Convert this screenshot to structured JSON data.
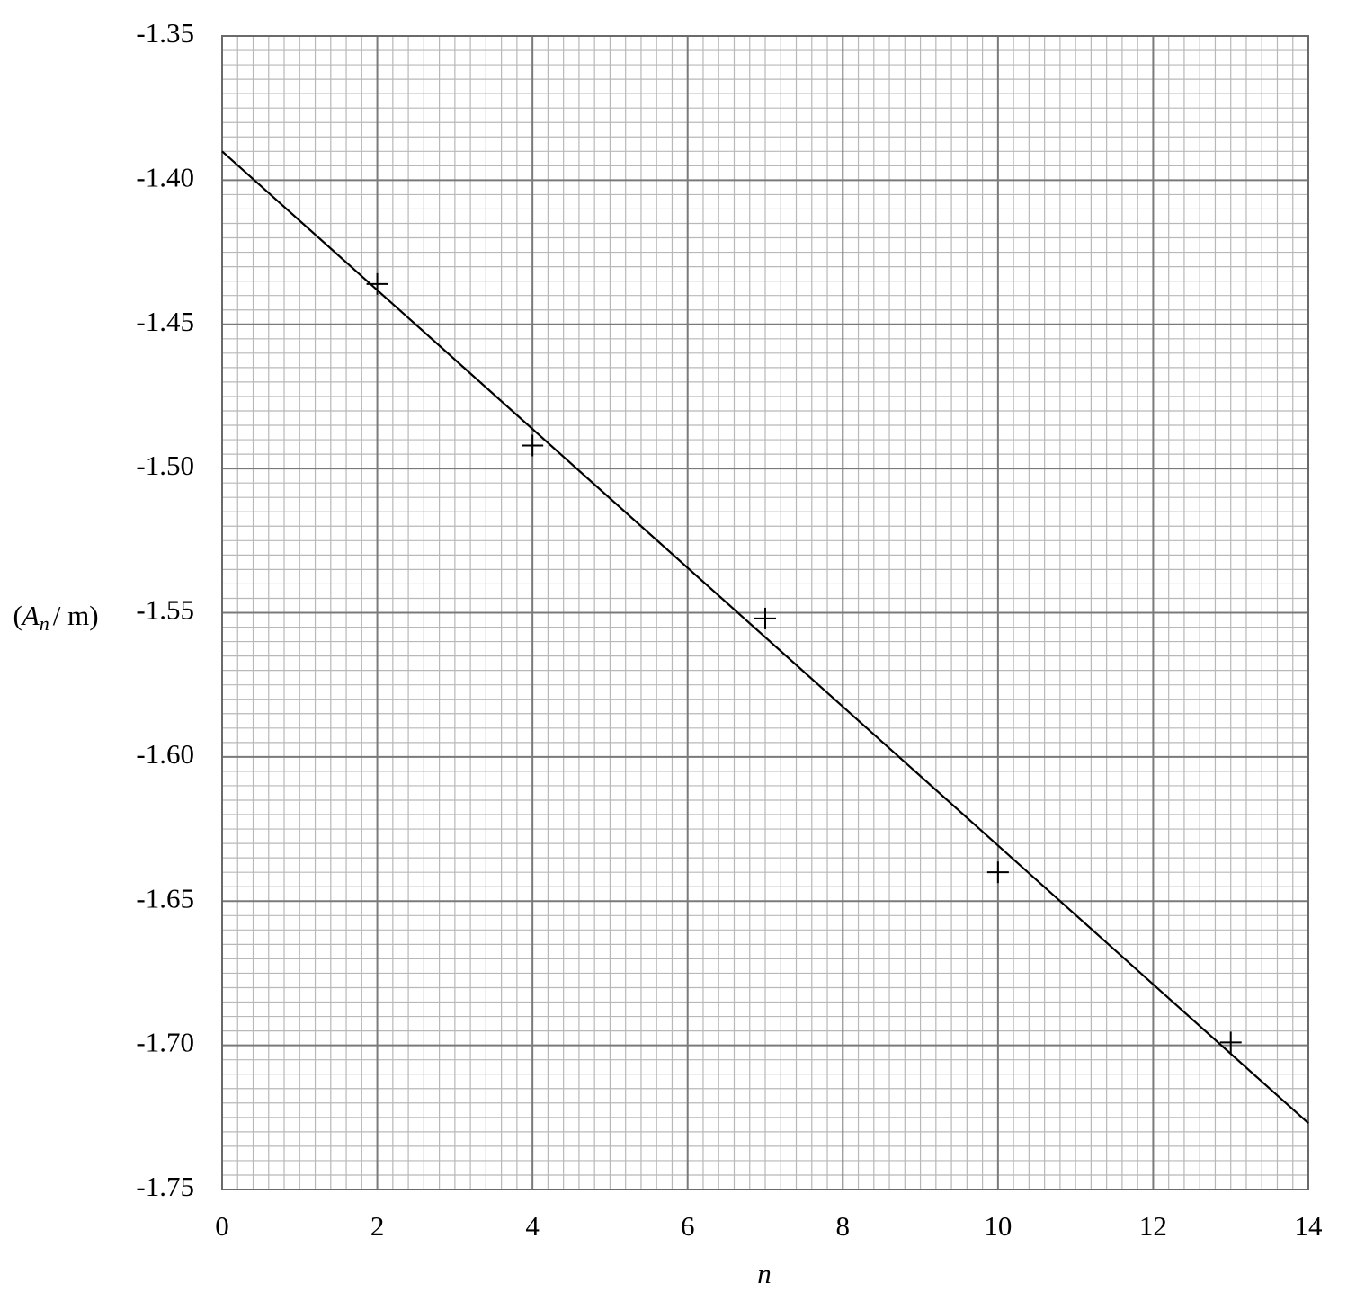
{
  "chart_data": {
    "type": "scatter",
    "x_label": "n",
    "y_label": {
      "prefix": "(",
      "symbol": "A",
      "subscript": "n",
      "suffix": "/ m)"
    },
    "xlim": [
      0,
      14
    ],
    "ylim": [
      -1.75,
      -1.35
    ],
    "xticks": [
      0,
      2,
      4,
      6,
      8,
      10,
      12,
      14
    ],
    "yticks": [
      -1.35,
      {
        "value": -1.4,
        "label": "-1.40"
      },
      -1.45,
      {
        "value": -1.5,
        "label": "-1.50"
      },
      -1.55,
      {
        "value": -1.6,
        "label": "-1.60"
      },
      -1.65,
      {
        "value": -1.7,
        "label": "-1.70"
      },
      -1.75
    ],
    "grid": true,
    "minor_divisions": 10,
    "color": "#000000",
    "points": {
      "x": [
        2,
        4,
        7,
        10,
        13
      ],
      "values": [
        -1.436,
        -1.492,
        -1.552,
        -1.64,
        -1.699
      ]
    },
    "fit_line": {
      "x": [
        0,
        14
      ],
      "values": [
        -1.39,
        -1.727
      ]
    }
  }
}
